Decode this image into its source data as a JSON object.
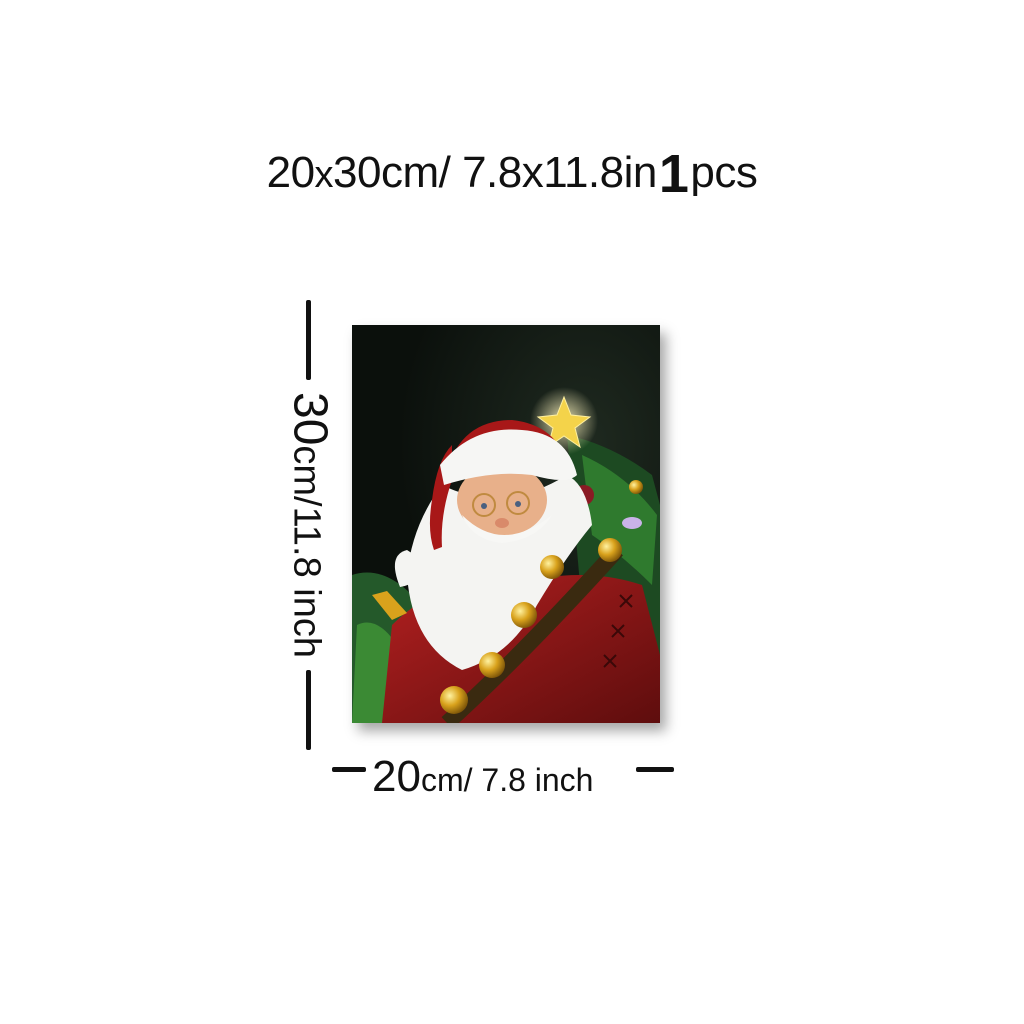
{
  "title": {
    "width_num": "20",
    "x": "x",
    "dims": "30cm/ 7.8x11.8in",
    "qty_num": "1",
    "qty_unit": "pcs"
  },
  "height_label": {
    "num": "30",
    "unit": "cm/11.8 inch"
  },
  "width_label": {
    "num": "20",
    "unit": "cm/ 7.8 inch"
  },
  "painting": {
    "subject": "santa-claus-painting",
    "background_color": "#0d120e",
    "coat_color": "#8e1616",
    "bell_color": "#d9a21c"
  }
}
